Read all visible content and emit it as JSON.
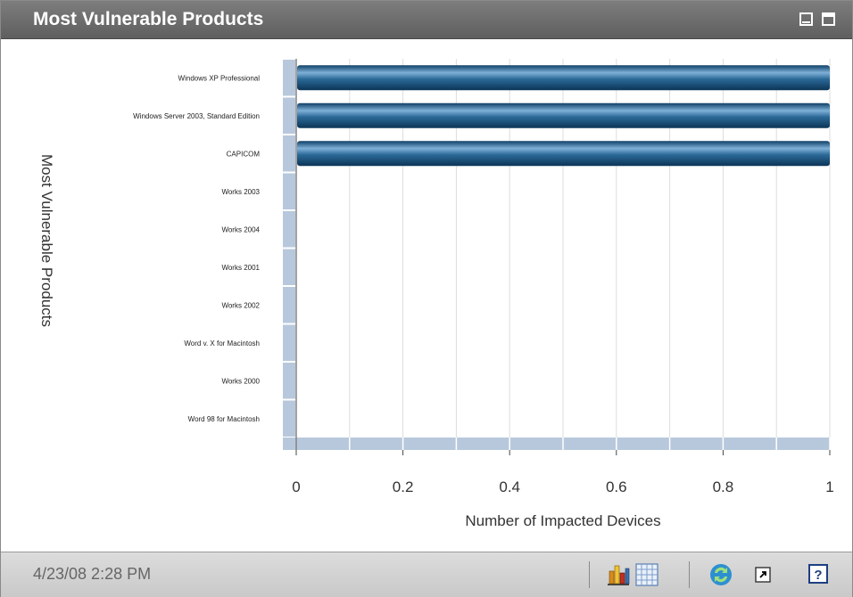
{
  "panel": {
    "title": "Most Vulnerable Products"
  },
  "footer": {
    "timestamp": "4/23/08 2:28 PM"
  },
  "icons": {
    "minimize": "minimize-icon",
    "maximize": "maximize-icon",
    "bar_chart": "bar-chart-icon",
    "grid": "grid-icon",
    "refresh": "refresh-icon",
    "popout": "popout-icon",
    "help": "help-icon"
  },
  "chart_data": {
    "type": "bar",
    "orientation": "horizontal",
    "categories": [
      "Windows XP Professional",
      "Windows Server 2003, Standard Edition",
      "CAPICOM",
      "Works 2003",
      "Works 2004",
      "Works 2001",
      "Works 2002",
      "Word v. X for Macintosh",
      "Works 2000",
      "Word 98 for Macintosh"
    ],
    "values": [
      1,
      1,
      1,
      0,
      0,
      0,
      0,
      0,
      0,
      0
    ],
    "xlabel": "Number of Impacted Devices",
    "ylabel": "Most Vulnerable Products",
    "xlim": [
      0,
      1
    ],
    "xticks": [
      "0",
      "0.2",
      "0.4",
      "0.6",
      "0.8",
      "1"
    ],
    "grid": true,
    "bar_color": "#1d5b87"
  }
}
